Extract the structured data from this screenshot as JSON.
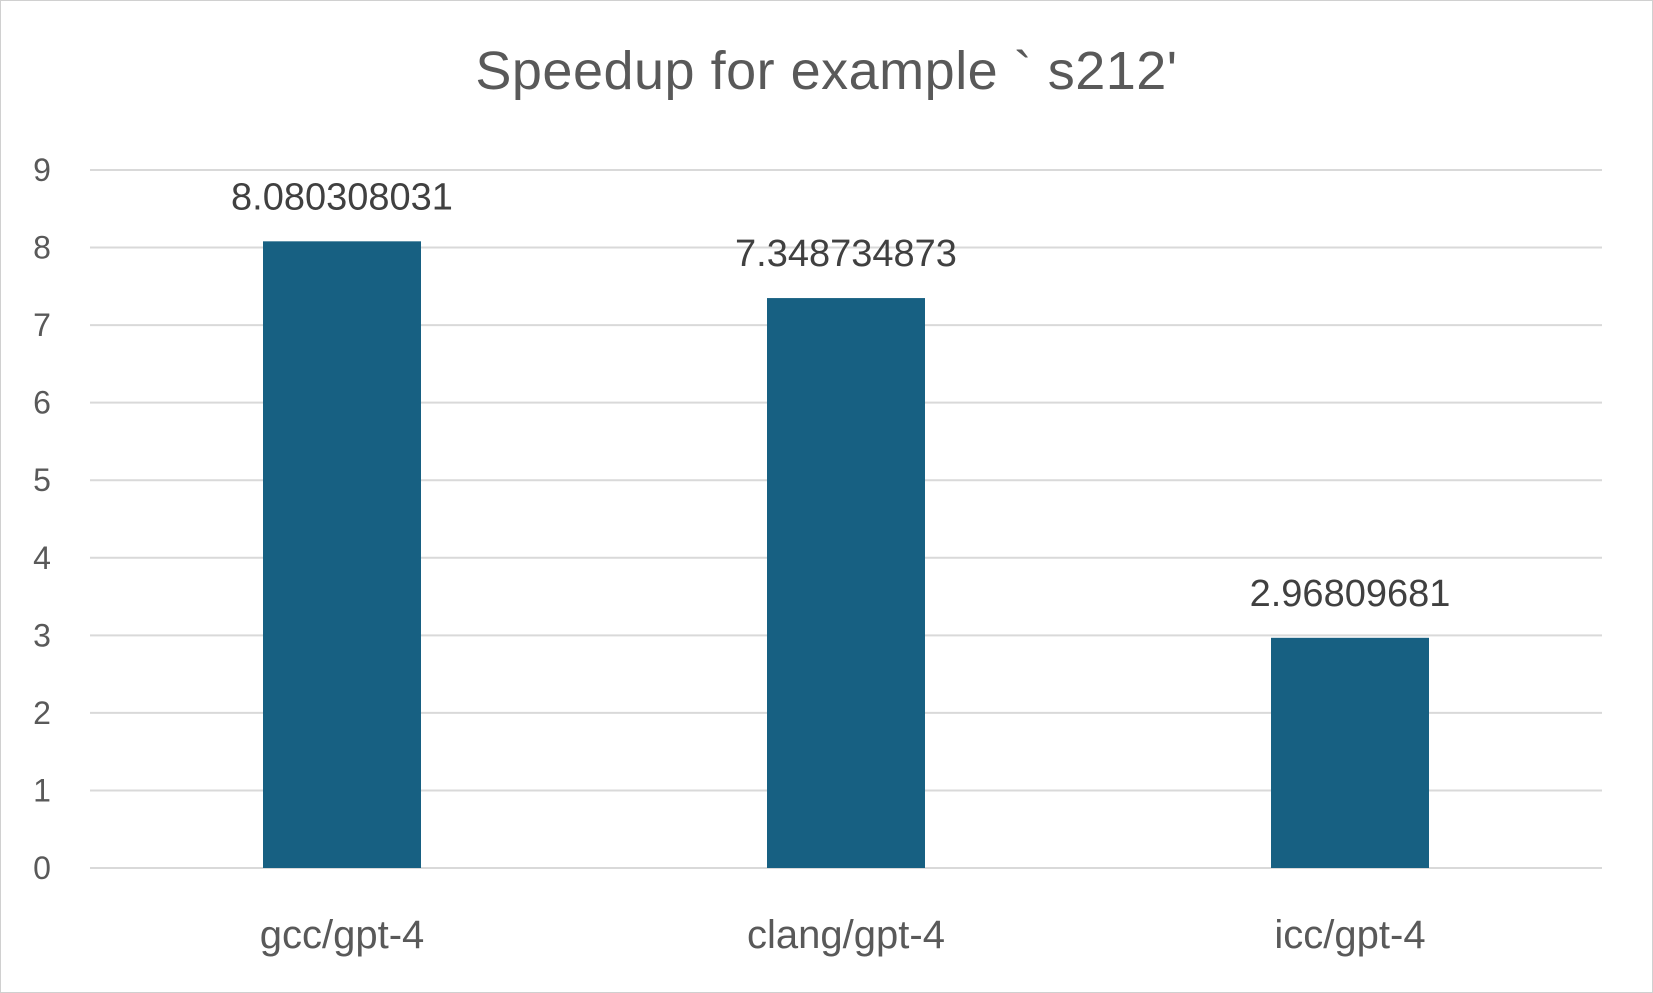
{
  "chart_data": {
    "type": "bar",
    "title": "Speedup for example ` s212'",
    "categories": [
      "gcc/gpt-4",
      "clang/gpt-4",
      "icc/gpt-4"
    ],
    "values": [
      8.080308031,
      7.348734873,
      2.96809681
    ],
    "data_labels": [
      "8.080308031",
      "7.348734873",
      "2.96809681"
    ],
    "xlabel": "",
    "ylabel": "",
    "ylim": [
      0,
      9
    ],
    "yticks": [
      0,
      1,
      2,
      3,
      4,
      5,
      6,
      7,
      8,
      9
    ],
    "grid": true,
    "legend": "none",
    "colors": {
      "bar": "#176082",
      "grid": "#d9d9d9",
      "text": "#595959"
    }
  }
}
